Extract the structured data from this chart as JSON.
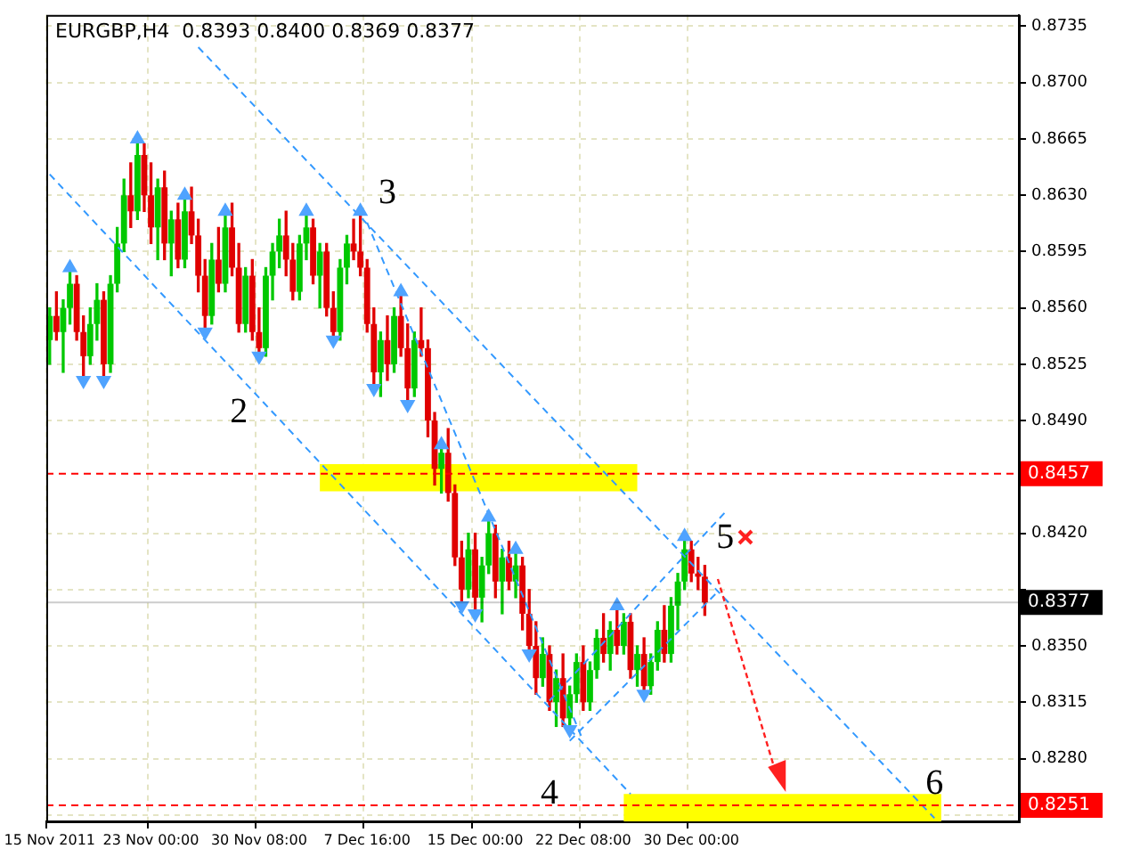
{
  "chart_data": {
    "type": "candlestick",
    "title": "EURGBP,H4  0.8393 0.8400 0.8369 0.8377",
    "categories": [
      "15 Nov 2011",
      null,
      null,
      null,
      null,
      null,
      null,
      null,
      null,
      null,
      null,
      null,
      null,
      null,
      null,
      "23 Nov 00:00",
      null,
      null,
      null,
      null,
      null,
      null,
      null,
      null,
      null,
      null,
      null,
      null,
      null,
      null,
      null,
      "30 Nov 08:00",
      null,
      null,
      null,
      null,
      null,
      null,
      null,
      null,
      null,
      null,
      null,
      null,
      null,
      null,
      null,
      "7 Dec 16:00",
      null,
      null,
      null,
      null,
      null,
      null,
      null,
      null,
      null,
      null,
      null,
      null,
      null,
      null,
      null,
      "15 Dec 00:00",
      null,
      null,
      null,
      null,
      null,
      null,
      null,
      null,
      null,
      null,
      null,
      null,
      null,
      null,
      null,
      "22 Dec 08:00",
      null,
      null,
      null,
      null,
      null,
      null,
      null,
      null,
      null,
      null,
      null,
      null,
      null,
      null,
      null,
      "30 Dec 00:00",
      null,
      null,
      null,
      null,
      null,
      null,
      null,
      null,
      null,
      null,
      null,
      null,
      null,
      null,
      null,
      null,
      null,
      null,
      null,
      null,
      null,
      null,
      null,
      null,
      null,
      null,
      null,
      null,
      null,
      null,
      null,
      null,
      null,
      null,
      null,
      null,
      null,
      null,
      null,
      null,
      null,
      null,
      null,
      null,
      null,
      null,
      null,
      null
    ],
    "ohlc": [
      [
        0.854,
        0.856,
        0.8525,
        0.8555
      ],
      [
        0.8555,
        0.857,
        0.854,
        0.8545
      ],
      [
        0.8545,
        0.8565,
        0.852,
        0.856
      ],
      [
        0.856,
        0.8585,
        0.855,
        0.8575
      ],
      [
        0.8575,
        0.858,
        0.854,
        0.8545
      ],
      [
        0.8545,
        0.8555,
        0.8515,
        0.853
      ],
      [
        0.853,
        0.856,
        0.8525,
        0.855
      ],
      [
        0.855,
        0.8575,
        0.854,
        0.8565
      ],
      [
        0.8565,
        0.857,
        0.8515,
        0.8525
      ],
      [
        0.8525,
        0.858,
        0.852,
        0.8575
      ],
      [
        0.8575,
        0.861,
        0.857,
        0.86
      ],
      [
        0.86,
        0.864,
        0.8595,
        0.863
      ],
      [
        0.863,
        0.865,
        0.861,
        0.862
      ],
      [
        0.862,
        0.8665,
        0.8615,
        0.8655
      ],
      [
        0.8655,
        0.8662,
        0.862,
        0.863
      ],
      [
        0.863,
        0.865,
        0.86,
        0.861
      ],
      [
        0.861,
        0.864,
        0.859,
        0.8635
      ],
      [
        0.8635,
        0.8645,
        0.859,
        0.86
      ],
      [
        0.86,
        0.862,
        0.858,
        0.8615
      ],
      [
        0.8615,
        0.8625,
        0.8585,
        0.859
      ],
      [
        0.859,
        0.863,
        0.8585,
        0.862
      ],
      [
        0.862,
        0.8635,
        0.86,
        0.8605
      ],
      [
        0.8605,
        0.8615,
        0.857,
        0.858
      ],
      [
        0.858,
        0.859,
        0.8545,
        0.8555
      ],
      [
        0.8555,
        0.86,
        0.855,
        0.859
      ],
      [
        0.859,
        0.861,
        0.857,
        0.8575
      ],
      [
        0.8575,
        0.862,
        0.857,
        0.861
      ],
      [
        0.861,
        0.8625,
        0.858,
        0.8585
      ],
      [
        0.8585,
        0.86,
        0.8545,
        0.855
      ],
      [
        0.855,
        0.8585,
        0.8545,
        0.858
      ],
      [
        0.858,
        0.859,
        0.854,
        0.8545
      ],
      [
        0.8545,
        0.856,
        0.853,
        0.8535
      ],
      [
        0.8535,
        0.8585,
        0.853,
        0.858
      ],
      [
        0.858,
        0.86,
        0.8565,
        0.8595
      ],
      [
        0.8595,
        0.8615,
        0.8585,
        0.8605
      ],
      [
        0.8605,
        0.862,
        0.858,
        0.859
      ],
      [
        0.859,
        0.86,
        0.8565,
        0.857
      ],
      [
        0.857,
        0.8605,
        0.8565,
        0.86
      ],
      [
        0.86,
        0.862,
        0.859,
        0.861
      ],
      [
        0.861,
        0.8615,
        0.8575,
        0.858
      ],
      [
        0.858,
        0.86,
        0.856,
        0.8595
      ],
      [
        0.8595,
        0.86,
        0.8555,
        0.856
      ],
      [
        0.856,
        0.857,
        0.854,
        0.8545
      ],
      [
        0.8545,
        0.859,
        0.854,
        0.8585
      ],
      [
        0.8585,
        0.8605,
        0.8575,
        0.86
      ],
      [
        0.86,
        0.8615,
        0.859,
        0.8595
      ],
      [
        0.8595,
        0.862,
        0.858,
        0.8585
      ],
      [
        0.8585,
        0.859,
        0.8545,
        0.855
      ],
      [
        0.855,
        0.856,
        0.851,
        0.852
      ],
      [
        0.852,
        0.8545,
        0.8505,
        0.854
      ],
      [
        0.854,
        0.8555,
        0.8515,
        0.8525
      ],
      [
        0.8525,
        0.856,
        0.852,
        0.8555
      ],
      [
        0.8555,
        0.857,
        0.853,
        0.8535
      ],
      [
        0.8535,
        0.855,
        0.85,
        0.851
      ],
      [
        0.851,
        0.8545,
        0.8505,
        0.854
      ],
      [
        0.854,
        0.856,
        0.853,
        0.8535
      ],
      [
        0.8535,
        0.854,
        0.848,
        0.849
      ],
      [
        0.849,
        0.8495,
        0.845,
        0.846
      ],
      [
        0.846,
        0.8475,
        0.8445,
        0.847
      ],
      [
        0.847,
        0.8485,
        0.844,
        0.8445
      ],
      [
        0.8445,
        0.845,
        0.84,
        0.8405
      ],
      [
        0.8405,
        0.8415,
        0.8375,
        0.8385
      ],
      [
        0.8385,
        0.842,
        0.838,
        0.841
      ],
      [
        0.841,
        0.842,
        0.837,
        0.838
      ],
      [
        0.838,
        0.8405,
        0.8365,
        0.84
      ],
      [
        0.84,
        0.843,
        0.8395,
        0.842
      ],
      [
        0.842,
        0.8425,
        0.838,
        0.839
      ],
      [
        0.839,
        0.841,
        0.837,
        0.8405
      ],
      [
        0.8405,
        0.8415,
        0.8385,
        0.839
      ],
      [
        0.839,
        0.841,
        0.838,
        0.84
      ],
      [
        0.84,
        0.8405,
        0.836,
        0.837
      ],
      [
        0.837,
        0.8385,
        0.8345,
        0.835
      ],
      [
        0.835,
        0.8365,
        0.832,
        0.833
      ],
      [
        0.833,
        0.8355,
        0.8325,
        0.8345
      ],
      [
        0.8345,
        0.835,
        0.831,
        0.8315
      ],
      [
        0.8315,
        0.8335,
        0.83,
        0.833
      ],
      [
        0.833,
        0.8345,
        0.83,
        0.8305
      ],
      [
        0.8305,
        0.8325,
        0.8298,
        0.832
      ],
      [
        0.832,
        0.8345,
        0.8315,
        0.834
      ],
      [
        0.834,
        0.835,
        0.831,
        0.8315
      ],
      [
        0.8315,
        0.834,
        0.831,
        0.8335
      ],
      [
        0.8335,
        0.836,
        0.833,
        0.8355
      ],
      [
        0.8355,
        0.837,
        0.834,
        0.8345
      ],
      [
        0.8345,
        0.8365,
        0.8335,
        0.836
      ],
      [
        0.836,
        0.8375,
        0.8345,
        0.835
      ],
      [
        0.835,
        0.837,
        0.8345,
        0.8365
      ],
      [
        0.8365,
        0.837,
        0.833,
        0.8335
      ],
      [
        0.8335,
        0.835,
        0.8325,
        0.8345
      ],
      [
        0.8345,
        0.8355,
        0.832,
        0.8325
      ],
      [
        0.8325,
        0.8345,
        0.832,
        0.834
      ],
      [
        0.834,
        0.8365,
        0.8335,
        0.836
      ],
      [
        0.836,
        0.8375,
        0.834,
        0.8345
      ],
      [
        0.8345,
        0.838,
        0.834,
        0.8375
      ],
      [
        0.8375,
        0.8395,
        0.836,
        0.839
      ],
      [
        0.839,
        0.8418,
        0.8385,
        0.841
      ],
      [
        0.841,
        0.8415,
        0.839,
        0.8395
      ],
      [
        0.8395,
        0.8405,
        0.8385,
        0.8393
      ],
      [
        0.8393,
        0.84,
        0.8369,
        0.8377
      ],
      null,
      null,
      null,
      null,
      null,
      null,
      null,
      null,
      null,
      null,
      null,
      null,
      null,
      null,
      null,
      null,
      null,
      null,
      null,
      null,
      null,
      null,
      null,
      null,
      null,
      null,
      null,
      null,
      null,
      null,
      null,
      null,
      null,
      null,
      null,
      null,
      null,
      null,
      null,
      null,
      null,
      null,
      null,
      null,
      null,
      null
    ],
    "series": [
      {
        "type": "line",
        "color": "#3399ff",
        "line_style": "dashed",
        "values": [
          null,
          null,
          null,
          null,
          null,
          null,
          null,
          null,
          null,
          null,
          null,
          null,
          null,
          null,
          null,
          null,
          null,
          null,
          null,
          null,
          null,
          null,
          0.8722,
          null,
          null,
          null,
          null,
          null,
          null,
          null,
          null,
          null,
          null,
          null,
          null,
          null,
          null,
          null,
          null,
          null,
          null,
          null,
          null,
          null,
          null,
          null,
          null,
          null,
          null,
          null,
          null,
          null,
          null,
          null,
          null,
          null,
          null,
          null,
          null,
          null,
          null,
          null,
          null,
          null,
          null,
          null,
          null,
          null,
          null,
          null,
          null,
          null,
          null,
          null,
          null,
          null,
          null,
          null,
          null,
          null,
          null,
          null,
          null,
          null,
          null,
          null,
          null,
          null,
          null,
          null,
          null,
          null,
          null,
          null,
          null,
          null,
          null,
          null,
          null,
          null,
          null,
          null,
          null,
          null,
          null,
          null,
          null,
          null,
          null,
          null,
          null,
          null,
          null,
          null,
          null,
          null,
          null,
          null,
          null,
          null,
          null,
          null,
          null,
          null,
          null,
          null,
          null,
          null,
          null,
          null,
          null,
          0.8243,
          null,
          null,
          null,
          null,
          null,
          null,
          null,
          null,
          null,
          null,
          null,
          null
        ]
      },
      {
        "type": "line",
        "color": "#3399ff",
        "line_style": "dashed",
        "values": [
          0.8643,
          null,
          null,
          null,
          null,
          null,
          null,
          null,
          null,
          null,
          null,
          null,
          null,
          null,
          null,
          null,
          null,
          null,
          null,
          null,
          null,
          null,
          null,
          null,
          null,
          null,
          null,
          null,
          null,
          null,
          null,
          null,
          null,
          null,
          null,
          null,
          null,
          null,
          null,
          null,
          null,
          null,
          null,
          null,
          null,
          null,
          null,
          null,
          null,
          null,
          null,
          null,
          null,
          null,
          null,
          null,
          null,
          null,
          null,
          null,
          null,
          null,
          null,
          null,
          null,
          null,
          null,
          null,
          null,
          null,
          null,
          null,
          null,
          null,
          null,
          null,
          null,
          null,
          null,
          null,
          null,
          null,
          null,
          null,
          null,
          null,
          0.8258,
          null,
          null,
          null,
          null,
          null,
          null,
          null,
          null,
          null,
          null,
          null,
          null,
          null,
          null,
          null,
          null,
          null,
          null,
          null,
          null,
          null,
          null,
          null,
          null,
          null,
          null,
          null,
          null,
          null,
          null,
          null,
          null,
          null,
          null,
          null,
          null,
          null,
          null,
          null,
          null,
          null,
          null,
          null,
          null,
          null,
          null,
          null,
          null,
          null,
          null,
          null,
          null,
          null,
          null,
          null,
          null,
          null
        ]
      },
      {
        "type": "line",
        "color": "#3399ff",
        "line_style": "dashed",
        "values": [
          null,
          null,
          null,
          null,
          null,
          null,
          null,
          null,
          null,
          null,
          null,
          null,
          null,
          null,
          null,
          null,
          null,
          null,
          null,
          null,
          null,
          null,
          null,
          null,
          null,
          null,
          null,
          null,
          null,
          null,
          null,
          null,
          null,
          null,
          null,
          null,
          null,
          null,
          null,
          null,
          null,
          null,
          null,
          null,
          null,
          null,
          null,
          0.8613,
          null,
          null,
          null,
          null,
          null,
          null,
          null,
          null,
          null,
          null,
          null,
          null,
          null,
          null,
          null,
          null,
          null,
          null,
          null,
          null,
          null,
          null,
          null,
          null,
          null,
          null,
          null,
          null,
          null,
          null,
          null,
          0.8291,
          null,
          null,
          null,
          null,
          null,
          null,
          null,
          null,
          null,
          null,
          null,
          null,
          null,
          null,
          null,
          null,
          null,
          null,
          null,
          null,
          null,
          null,
          null,
          null,
          null,
          null,
          null,
          null,
          null,
          null,
          null,
          null,
          null,
          null,
          null,
          null,
          null,
          null,
          null,
          null,
          null,
          null,
          null,
          null,
          null,
          null,
          null,
          null,
          null,
          null,
          null,
          null,
          null,
          null,
          null,
          null,
          null,
          null,
          null,
          null,
          null,
          null,
          null,
          null
        ]
      },
      {
        "type": "line",
        "color": "#3399ff",
        "line_style": "dashed",
        "values": [
          null,
          null,
          null,
          null,
          null,
          null,
          null,
          null,
          null,
          null,
          null,
          null,
          null,
          null,
          null,
          null,
          null,
          null,
          null,
          null,
          null,
          null,
          null,
          null,
          null,
          null,
          null,
          null,
          null,
          null,
          null,
          null,
          null,
          null,
          null,
          null,
          null,
          null,
          null,
          null,
          null,
          null,
          null,
          null,
          null,
          null,
          null,
          null,
          null,
          null,
          null,
          null,
          null,
          null,
          null,
          null,
          null,
          null,
          null,
          null,
          null,
          null,
          null,
          null,
          null,
          null,
          null,
          null,
          null,
          null,
          null,
          null,
          null,
          null,
          0.8316,
          null,
          null,
          null,
          null,
          null,
          null,
          null,
          null,
          null,
          null,
          null,
          null,
          null,
          null,
          null,
          null,
          null,
          null,
          null,
          null,
          null,
          null,
          null,
          null,
          null,
          0.8433,
          null,
          null,
          null,
          null,
          null,
          null,
          null,
          null,
          null,
          null,
          null,
          null,
          null,
          null,
          null,
          null,
          null,
          null,
          null,
          null,
          null,
          null,
          null,
          null,
          null,
          null,
          null,
          null,
          null,
          null,
          null,
          null,
          null,
          null,
          null,
          null,
          null,
          null,
          null,
          null,
          null,
          null,
          null
        ]
      },
      {
        "type": "line",
        "color": "#3399ff",
        "line_style": "dashed",
        "values": [
          null,
          null,
          null,
          null,
          null,
          null,
          null,
          null,
          null,
          null,
          null,
          null,
          null,
          null,
          null,
          null,
          null,
          null,
          null,
          null,
          null,
          null,
          null,
          null,
          null,
          null,
          null,
          null,
          null,
          null,
          null,
          null,
          null,
          null,
          null,
          null,
          null,
          null,
          null,
          null,
          null,
          null,
          null,
          null,
          null,
          null,
          null,
          null,
          null,
          null,
          null,
          null,
          null,
          null,
          null,
          null,
          null,
          null,
          null,
          null,
          null,
          null,
          null,
          null,
          null,
          null,
          null,
          null,
          null,
          null,
          null,
          null,
          null,
          null,
          null,
          null,
          null,
          0.8291,
          null,
          null,
          null,
          null,
          null,
          null,
          null,
          null,
          null,
          null,
          null,
          null,
          null,
          null,
          null,
          null,
          null,
          null,
          null,
          null,
          null,
          0.8384,
          null,
          null,
          null,
          null,
          null,
          null,
          null,
          null,
          null,
          null,
          null,
          null,
          null,
          null,
          null,
          null,
          null,
          null,
          null,
          null,
          null,
          null,
          null,
          null,
          null,
          null,
          null,
          null,
          null,
          null,
          null,
          null,
          null,
          null,
          null,
          null,
          null,
          null,
          null,
          null,
          null,
          null,
          null,
          null
        ]
      },
      {
        "type": "scatter",
        "color": "#4fa3ff",
        "marker": "triangle",
        "values": [
          null,
          null,
          null,
          0.8585,
          null,
          null,
          null,
          null,
          null,
          null,
          null,
          null,
          null,
          0.8665,
          null,
          null,
          null,
          null,
          null,
          null,
          0.863,
          null,
          null,
          null,
          null,
          null,
          0.862,
          null,
          null,
          null,
          null,
          null,
          null,
          null,
          null,
          null,
          null,
          null,
          0.862,
          null,
          null,
          null,
          null,
          null,
          null,
          null,
          0.862,
          null,
          null,
          null,
          null,
          null,
          0.857,
          null,
          null,
          null,
          null,
          null,
          0.8475,
          null,
          null,
          null,
          null,
          null,
          null,
          0.843,
          null,
          null,
          null,
          0.841,
          null,
          null,
          null,
          null,
          null,
          null,
          null,
          null,
          null,
          null,
          null,
          null,
          null,
          null,
          0.8375,
          null,
          null,
          null,
          null,
          null,
          null,
          null,
          null,
          null,
          0.8418,
          null,
          null,
          null,
          null,
          null,
          null,
          null,
          null,
          null,
          null,
          null,
          null,
          null,
          null,
          null,
          null,
          null,
          null,
          null,
          null,
          null,
          null,
          null,
          null,
          null,
          null,
          null,
          null,
          null,
          null,
          null,
          null,
          null,
          null,
          null,
          null,
          null,
          null,
          null,
          null,
          null,
          null,
          null,
          null,
          null,
          null,
          null,
          null,
          null
        ]
      },
      {
        "type": "scatter",
        "color": "#4fa3ff",
        "marker": "triangle",
        "values": [
          null,
          null,
          null,
          null,
          null,
          0.8515,
          null,
          null,
          0.8515,
          null,
          null,
          null,
          null,
          null,
          null,
          null,
          null,
          null,
          null,
          null,
          null,
          null,
          null,
          0.8545,
          null,
          null,
          null,
          null,
          null,
          null,
          null,
          0.853,
          null,
          null,
          null,
          null,
          null,
          null,
          null,
          null,
          null,
          null,
          0.854,
          null,
          null,
          null,
          null,
          null,
          0.851,
          null,
          null,
          null,
          null,
          0.85,
          null,
          null,
          null,
          null,
          null,
          null,
          null,
          0.8375,
          null,
          0.837,
          null,
          null,
          null,
          null,
          null,
          null,
          null,
          0.8345,
          null,
          null,
          null,
          null,
          null,
          0.8298,
          null,
          null,
          null,
          null,
          null,
          null,
          null,
          null,
          null,
          null,
          0.832,
          null,
          null,
          null,
          null,
          null,
          null,
          null,
          null,
          null,
          null,
          null,
          null,
          null,
          null,
          null,
          null,
          null,
          null,
          null,
          null,
          null,
          null,
          null,
          null,
          null,
          null,
          null,
          null,
          null,
          null,
          null,
          null,
          null,
          null,
          null,
          null,
          null,
          null,
          null,
          null,
          null,
          null,
          null,
          null,
          null,
          null,
          null,
          null,
          null,
          null,
          null,
          null,
          null,
          null,
          null
        ]
      }
    ],
    "ylim": [
      0.8241,
      0.8742
    ],
    "yticks": [
      {
        "value": 0.8245,
        "label": null
      },
      {
        "value": 0.828,
        "label": "0.8280"
      },
      0.8315,
      {
        "value": 0.835,
        "label": "0.8350"
      },
      {
        "value": 0.8385,
        "label": null
      },
      {
        "value": 0.842,
        "label": "0.8420"
      },
      {
        "value": 0.849,
        "label": "0.8490"
      },
      0.8525,
      {
        "value": 0.856,
        "label": "0.8560"
      },
      0.8595,
      {
        "value": 0.863,
        "label": "0.8630"
      },
      0.8665,
      {
        "value": 0.87,
        "label": "0.8700"
      },
      0.8735
    ],
    "grid": true,
    "ref_lines": [
      {
        "axis": "y",
        "value": 0.8457,
        "label": "0.8457",
        "color": "#ff0000",
        "line_style": "dashed"
      },
      {
        "axis": "y",
        "value": 0.8251,
        "label": "0.8251",
        "color": "#ff0000",
        "line_style": "dashed"
      },
      {
        "axis": "y",
        "value": 0.8377,
        "label": "0.8377",
        "color": "#000000",
        "line_style": "solid"
      }
    ],
    "bands": [
      {
        "axis": "y",
        "from": 0.8446,
        "to": 0.8463,
        "color": "#ffff00"
      },
      {
        "axis": "y",
        "from": 0.8241,
        "to": 0.8258,
        "color": "#ffff00"
      }
    ],
    "annotations": [
      "2",
      "3",
      "4",
      "5",
      "6"
    ]
  }
}
